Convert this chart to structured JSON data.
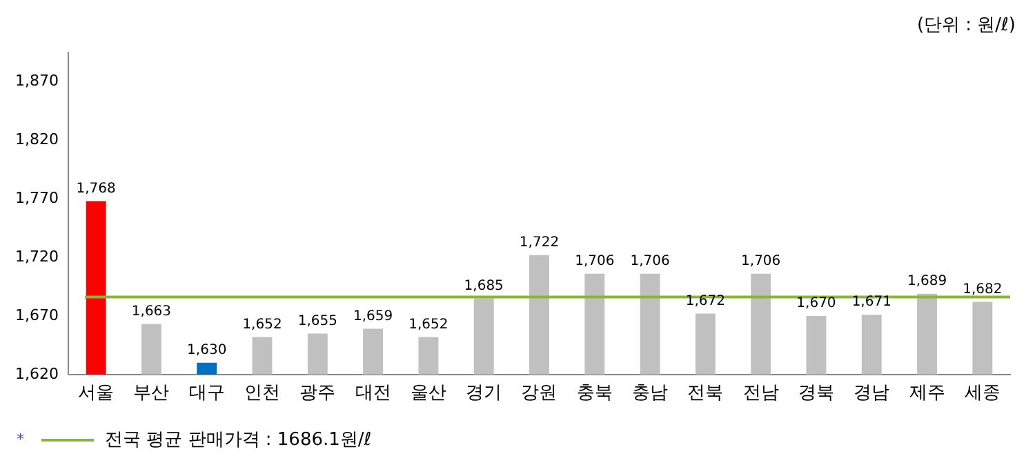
{
  "chart_data": {
    "type": "bar",
    "categories": [
      "서울",
      "부산",
      "대구",
      "인천",
      "광주",
      "대전",
      "울산",
      "경기",
      "강원",
      "충북",
      "충남",
      "전북",
      "전남",
      "경북",
      "경남",
      "제주",
      "세종"
    ],
    "values": [
      1768,
      1663,
      1630,
      1652,
      1655,
      1659,
      1652,
      1685,
      1722,
      1706,
      1706,
      1672,
      1706,
      1670,
      1671,
      1689,
      1682
    ],
    "colors": [
      "#ff0000",
      "#c0c0c0",
      "#0070c0",
      "#c0c0c0",
      "#c0c0c0",
      "#c0c0c0",
      "#c0c0c0",
      "#c0c0c0",
      "#c0c0c0",
      "#c0c0c0",
      "#c0c0c0",
      "#c0c0c0",
      "#c0c0c0",
      "#c0c0c0",
      "#c0c0c0",
      "#c0c0c0",
      "#c0c0c0"
    ],
    "value_labels": [
      "1,768",
      "1,663",
      "1,630",
      "1,652",
      "1,655",
      "1,659",
      "1,652",
      "1,685",
      "1,722",
      "1,706",
      "1,706",
      "1,672",
      "1,706",
      "1,670",
      "1,671",
      "1,689",
      "1,682"
    ],
    "ylim": [
      1620,
      1895
    ],
    "yticks": [
      {
        "value": 1620,
        "label": "1,620"
      },
      {
        "value": 1670,
        "label": "1,670"
      },
      {
        "value": 1720,
        "label": "1,720"
      },
      {
        "value": 1770,
        "label": "1,770"
      },
      {
        "value": 1820,
        "label": "1,820"
      },
      {
        "value": 1870,
        "label": "1,870"
      }
    ],
    "ref_lines": [
      {
        "axis": "y",
        "value": 1686.1,
        "label": "전국 평균 판매가격 : 1686.1원/ℓ",
        "color": "#8db33a"
      }
    ],
    "annotations": [
      "(단위 : 원/ℓ)",
      "*"
    ],
    "grid": false,
    "legend": "bottom left"
  }
}
